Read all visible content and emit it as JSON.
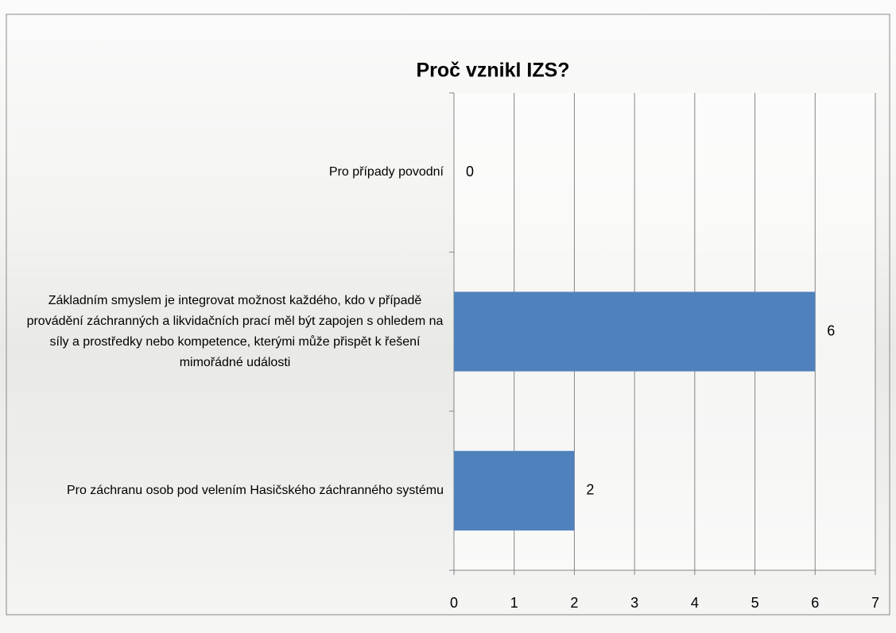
{
  "chart_data": {
    "type": "hbar",
    "title": "Proč vznikl IZS?",
    "categories": [
      "Pro případy povodní",
      "Základním smyslem je integrovat možnost každého, kdo v případě provádění záchranných a likvidačních prací měl být zapojen s ohledem na síly a prostředky nebo kompetence, kterými může přispět k řešení mimořádné události",
      "Pro záchranu osob pod velením Hasičského záchranného systému"
    ],
    "values": [
      0,
      6,
      2
    ],
    "color": "#4f81bd",
    "xlim": [
      0,
      7
    ],
    "xticks": [
      0,
      1,
      2,
      3,
      4,
      5,
      6,
      7
    ],
    "grid": true
  }
}
